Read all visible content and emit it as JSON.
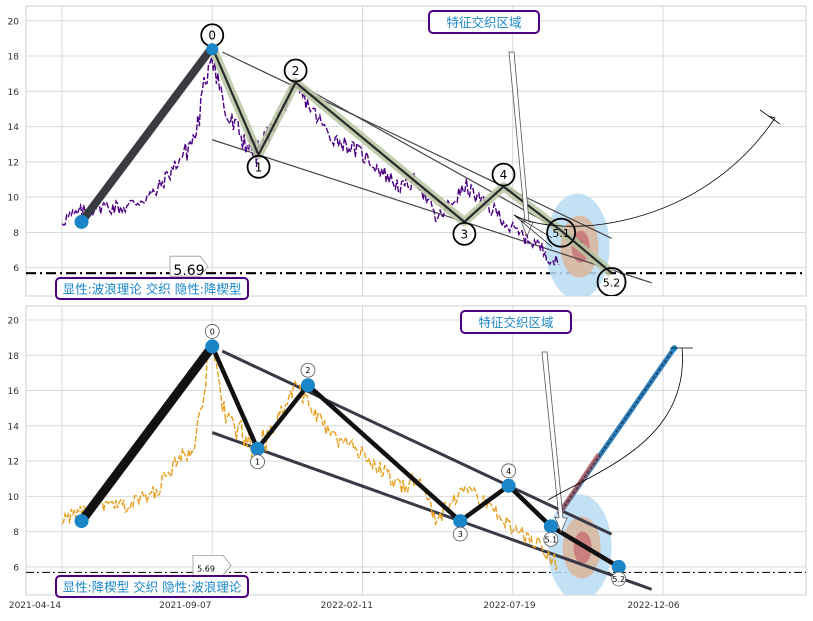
{
  "chart_data": [
    {
      "type": "line",
      "panel": "top",
      "ylim": [
        4.8,
        21
      ],
      "yticks": [
        6,
        8,
        10,
        12,
        14,
        16,
        18,
        20
      ],
      "grid": true,
      "wave_points": [
        {
          "label": "0",
          "date": "2021-09-07",
          "value": 18.5
        },
        {
          "label": "1",
          "date": "2021-10-22",
          "value": 12.4
        },
        {
          "label": "2",
          "date": "2021-11-27",
          "value": 16.5
        },
        {
          "label": "3",
          "date": "2022-05-10",
          "value": 8.6
        },
        {
          "label": "4",
          "date": "2022-06-17",
          "value": 10.6
        },
        {
          "label": "5.1",
          "date": "2022-08-12",
          "value": 8.1
        },
        {
          "label": "5.2",
          "date": "2022-09-30",
          "value": 5.7
        }
      ],
      "start_point": {
        "date": "2021-05-03",
        "value": 8.6
      },
      "level_line": {
        "value": 5.69,
        "label": "5.69"
      },
      "annotation_feature": "特征交织区域",
      "annotation_caption": "显性:波浪理论 交织 隐性:降楔型",
      "price_color": "#4b0082"
    },
    {
      "type": "line",
      "panel": "bottom",
      "ylim": [
        4.8,
        21
      ],
      "yticks": [
        6,
        8,
        10,
        12,
        14,
        16,
        18,
        20
      ],
      "grid": true,
      "x_ticks": [
        "2021-04-14",
        "2021-09-07",
        "2022-02-11",
        "2022-07-19",
        "2022-12-06"
      ],
      "wave_points": [
        {
          "label": "0",
          "date": "2021-09-07",
          "value": 18.5
        },
        {
          "label": "1",
          "date": "2021-10-21",
          "value": 12.7
        },
        {
          "label": "2",
          "date": "2021-12-09",
          "value": 16.3
        },
        {
          "label": "3",
          "date": "2022-05-06",
          "value": 8.6
        },
        {
          "label": "4",
          "date": "2022-06-22",
          "value": 10.6
        },
        {
          "label": "5.1",
          "date": "2022-08-02",
          "value": 8.3
        },
        {
          "label": "5.2",
          "date": "2022-10-07",
          "value": 6.0
        }
      ],
      "start_point": {
        "date": "2021-05-03",
        "value": 8.6
      },
      "target_point": {
        "date": "2022-11-30",
        "value": 18.4
      },
      "level_line": {
        "value": 5.69,
        "label": "5.69"
      },
      "annotation_feature": "特征交织区域",
      "annotation_caption": "显性:降楔型 交织 隐性:波浪理论",
      "price_color": "#e8a020"
    }
  ]
}
